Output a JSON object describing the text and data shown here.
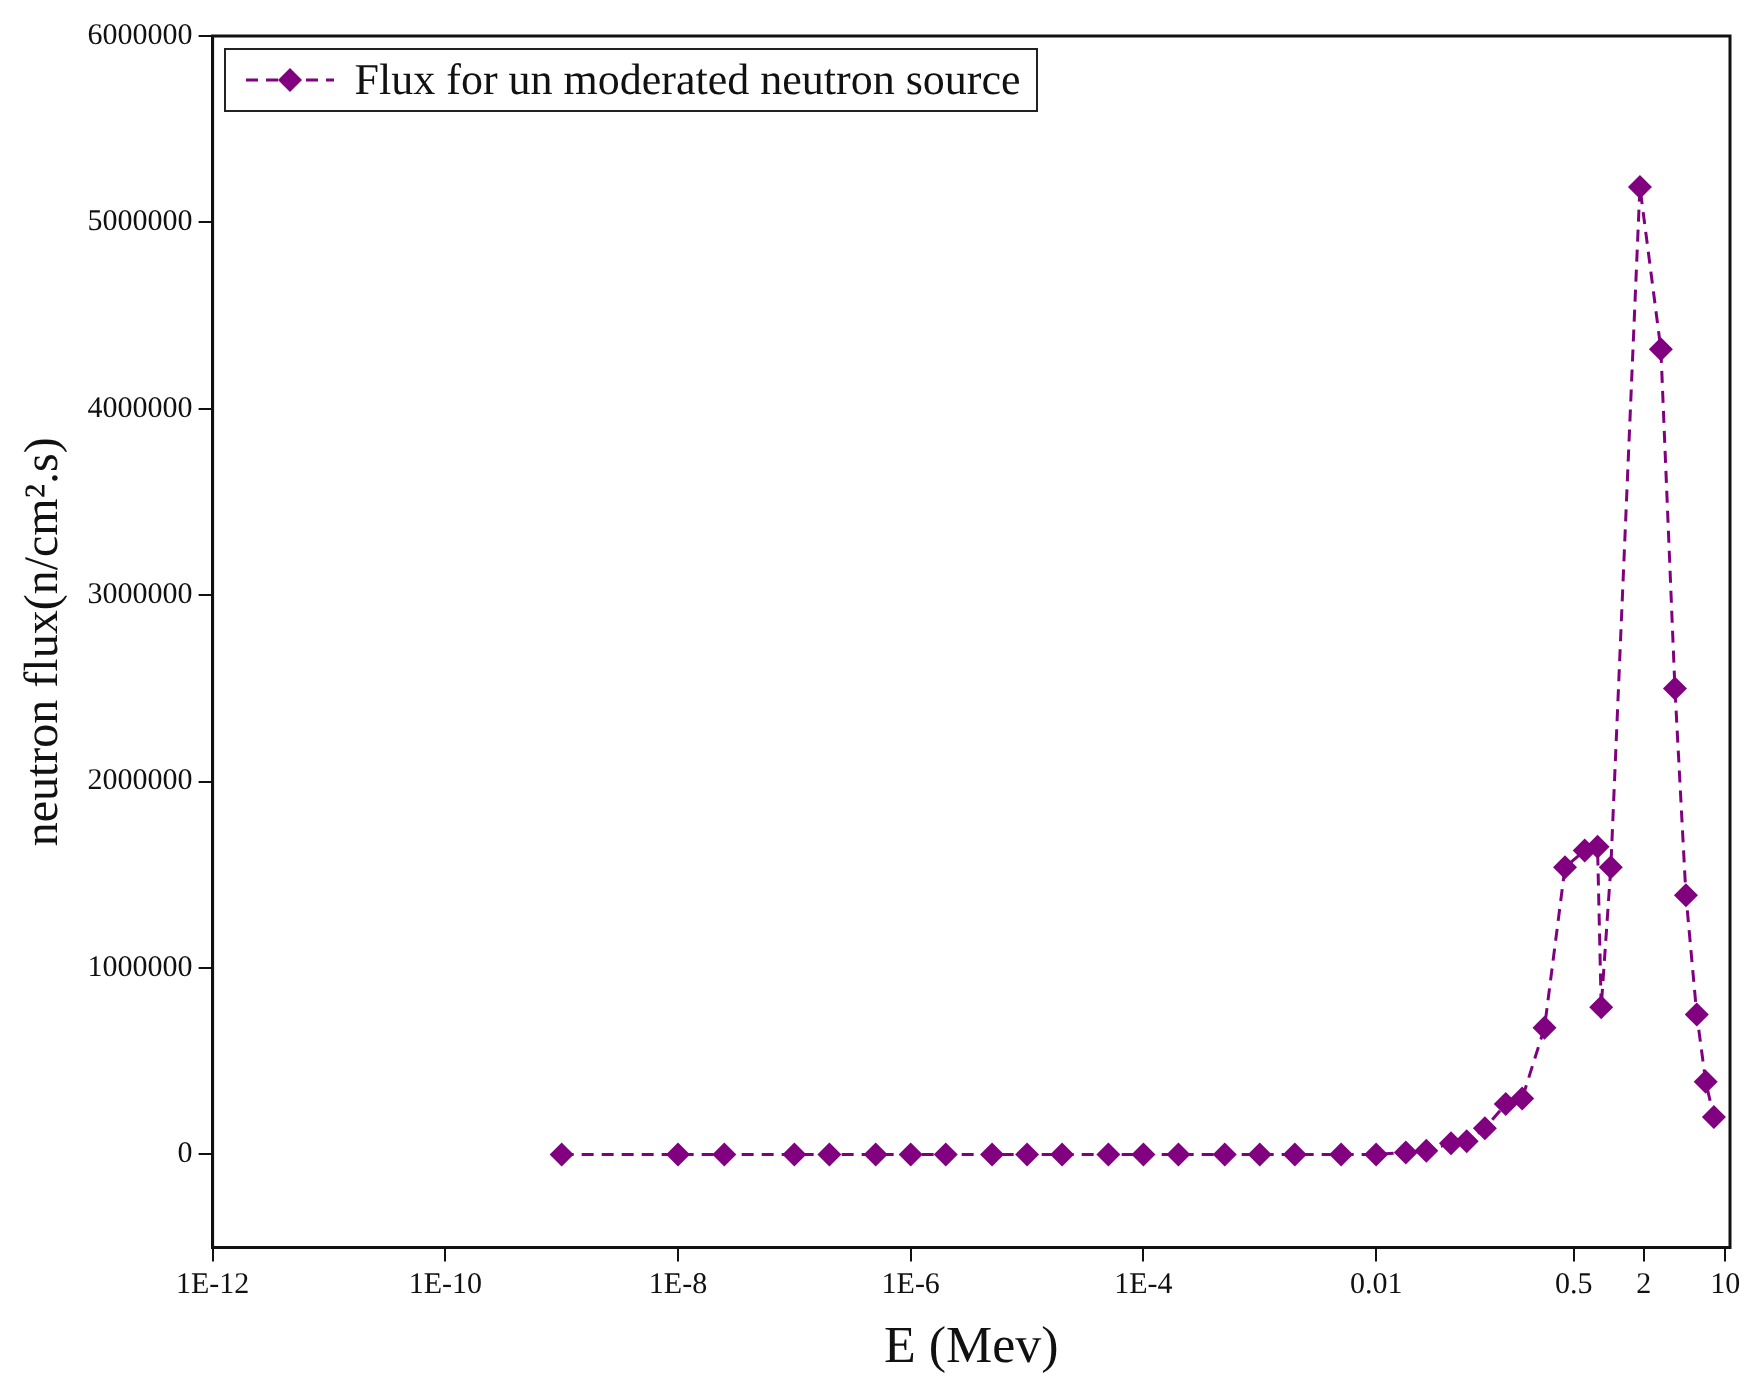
{
  "chart_data": {
    "type": "line",
    "xlabel": "E (Mev)",
    "ylabel": "neutron flux(n/cm².s)",
    "log": "x",
    "x": [
      1e-09,
      1e-08,
      2.5e-08,
      1e-07,
      2e-07,
      5e-07,
      1e-06,
      2e-06,
      5e-06,
      1e-05,
      2e-05,
      5e-05,
      0.0001,
      0.0002,
      0.0005,
      0.001,
      0.002,
      0.005,
      0.01,
      0.018,
      0.027,
      0.044,
      0.06,
      0.086,
      0.13,
      0.18,
      0.28,
      0.42,
      0.62,
      0.8,
      0.86,
      1.04,
      1.85,
      2.8,
      3.7,
      4.6,
      5.7,
      6.8,
      8.0
    ],
    "series": [
      {
        "name": "Flux for un moderated neutron source",
        "color": "#800080",
        "values": [
          0,
          0,
          0,
          0,
          0,
          0,
          0,
          0,
          0,
          0,
          0,
          0,
          0,
          0,
          0,
          0,
          0,
          0,
          0,
          10000,
          20000,
          60000,
          70000,
          140000,
          270000,
          300000,
          680000,
          1540000,
          1630000,
          1650000,
          790000,
          1540000,
          5190000,
          4320000,
          2500000,
          1390000,
          750000,
          390000,
          200000
        ]
      }
    ],
    "xlim": [
      1e-12,
      11
    ],
    "xticks": [
      {
        "value": 1e-12,
        "label": "1E-12"
      },
      {
        "value": 1e-10,
        "label": "1E-10"
      },
      {
        "value": 1e-08,
        "label": "1E-8"
      },
      {
        "value": 1e-06,
        "label": "1E-6"
      },
      {
        "value": 0.0001,
        "label": "1E-4"
      },
      0.01,
      0.5,
      2,
      10
    ],
    "ylim": [
      -500000,
      6000000
    ],
    "yticks": [
      0,
      1000000,
      2000000,
      3000000,
      4000000,
      5000000,
      6000000
    ],
    "grid": false,
    "legend": "top left",
    "marker": "diamond",
    "line_style": "dashed"
  }
}
